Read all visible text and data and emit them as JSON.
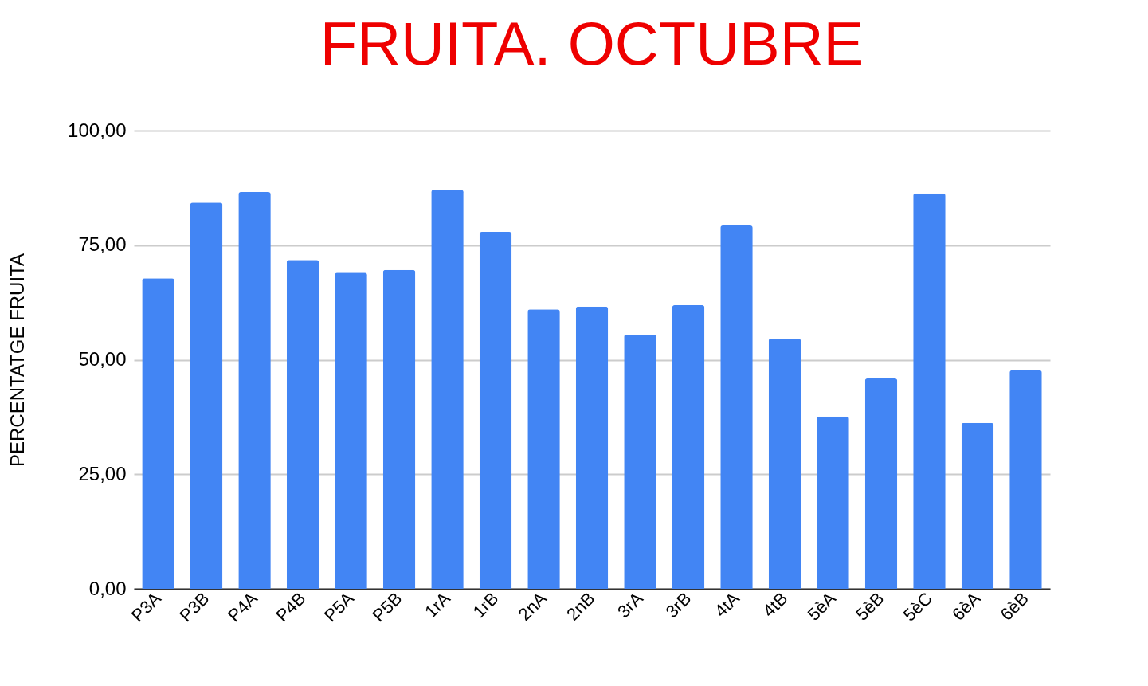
{
  "chart_data": {
    "type": "bar",
    "title": "FRUITA. OCTUBRE",
    "ylabel": "PERCENTATGE FRUITA",
    "categories": [
      "P3A",
      "P3B",
      "P4A",
      "P4B",
      "P5A",
      "P5B",
      "1rA",
      "1rB",
      "2nA",
      "2nB",
      "3rA",
      "3rB",
      "4tA",
      "4tB",
      "5èA",
      "5èB",
      "5èC",
      "6èA",
      "6èB"
    ],
    "values": [
      67.8,
      84.3,
      86.6,
      71.8,
      69.0,
      69.6,
      87.1,
      77.9,
      61.0,
      61.6,
      55.5,
      61.9,
      79.3,
      54.6,
      37.6,
      45.9,
      86.3,
      36.2,
      47.7
    ],
    "color": "#4285f4",
    "ylim": [
      0,
      100
    ],
    "yticks": [
      {
        "value": 0,
        "label": "0,00"
      },
      {
        "value": 25,
        "label": "25,00"
      },
      {
        "value": 50,
        "label": "50,00"
      },
      {
        "value": 75,
        "label": "75,00"
      },
      {
        "value": 100,
        "label": "100,00"
      }
    ],
    "grid": "y"
  }
}
